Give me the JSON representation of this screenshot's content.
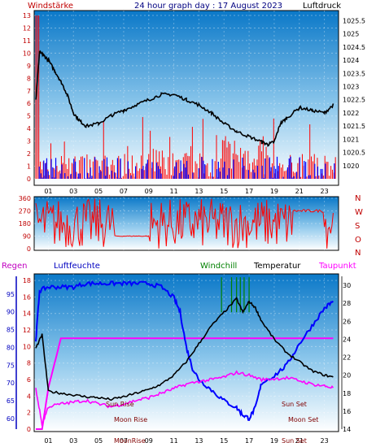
{
  "header": {
    "left_label": "Windstärke",
    "title": "24 hour graph day : 17 August 2023",
    "right_label": "Luftdruck"
  },
  "compass": [
    "N",
    "W",
    "S",
    "O",
    "N"
  ],
  "legend": {
    "regen": "Regen",
    "luftfeuchte": "Luftfeuchte",
    "windchill": "Windchill",
    "temperatur": "Temperatur",
    "taupunkt": "Taupunkt"
  },
  "annotations": {
    "sun_rise": "Sun Rise",
    "moon_rise": "Moon Rise",
    "sun_set": "Sun Set",
    "moon_set": "Moon Set",
    "axis_moon_rise": "MoonRise",
    "axis_sun_set": "Sun Set"
  },
  "colors": {
    "wind": "#ff0000",
    "gust": "#0000ff",
    "pressure": "#000000",
    "humidity": "#0000ff",
    "temperature": "#000000",
    "dewpoint": "#ff00ff",
    "windchill": "#008000",
    "rain": "#ff00ff"
  },
  "chart_data": [
    {
      "type": "line",
      "title": "24 hour graph day : 17 August 2023",
      "hours": [
        "01",
        "03",
        "05",
        "07",
        "09",
        "11",
        "13",
        "15",
        "17",
        "19",
        "21",
        "23"
      ],
      "ylabel_left": "Windstärke",
      "ylabel_right": "Luftdruck",
      "ylim_left": [
        0,
        13
      ],
      "ylim_right": [
        1019.5,
        1025.7
      ],
      "yticks_left": [
        "0",
        "1",
        "2",
        "3",
        "4",
        "5",
        "6",
        "7",
        "8",
        "9",
        "10",
        "11",
        "12",
        "13"
      ],
      "yticks_right": [
        "1020",
        "1020.5",
        "1021",
        "1021.5",
        "1022",
        "1022.5",
        "1023",
        "1023.5",
        "1024",
        "1024.5",
        "1025",
        "1025.5"
      ],
      "series": [
        {
          "name": "Luftdruck",
          "x": [
            0,
            0.3,
            0.6,
            1,
            1.5,
            2,
            2.5,
            3,
            3.5,
            4,
            5,
            6,
            7,
            8,
            9,
            10,
            11,
            12,
            13,
            14,
            15,
            16,
            17,
            18,
            18.5,
            19,
            19.5,
            20,
            21,
            22,
            23,
            23.7
          ],
          "y": [
            1022.5,
            1024.3,
            1024.2,
            1024,
            1023.6,
            1023.2,
            1022.7,
            1022,
            1021.7,
            1021.5,
            1021.6,
            1021.9,
            1022.1,
            1022.3,
            1022.5,
            1022.7,
            1022.7,
            1022.5,
            1022.3,
            1022.0,
            1021.6,
            1021.3,
            1021.1,
            1020.9,
            1020.8,
            1020.9,
            1021.6,
            1021.8,
            1022.2,
            1022.1,
            1022.0,
            1022.3
          ]
        }
      ]
    },
    {
      "type": "scatter",
      "title": "",
      "yticks": [
        "0",
        "90",
        "180",
        "270",
        "360"
      ],
      "ylim": [
        0,
        360
      ]
    },
    {
      "type": "line",
      "title": "",
      "yticks_left": [
        "60",
        "65",
        "70",
        "75",
        "80",
        "85",
        "90",
        "95"
      ],
      "yticks_left2": [
        "0",
        "2",
        "4",
        "6",
        "8",
        "10",
        "12",
        "14",
        "16",
        "18"
      ],
      "yticks_right": [
        "14",
        "16",
        "18",
        "20",
        "22",
        "24",
        "26",
        "28",
        "30"
      ],
      "ylim_humidity": [
        57,
        100
      ],
      "ylim_temp": [
        14,
        31
      ],
      "series": [
        {
          "name": "Luftfeuchte",
          "x": [
            0,
            0.3,
            1,
            2,
            3,
            4,
            5,
            6,
            7,
            8,
            9,
            10,
            11,
            11.5,
            12,
            12.5,
            13,
            14,
            15,
            16,
            16.5,
            17,
            17.5,
            18,
            19,
            20,
            21,
            22,
            23,
            23.7
          ],
          "y": [
            82,
            96,
            97,
            97,
            97,
            98,
            98,
            98,
            98,
            98,
            98,
            97,
            94,
            90,
            80,
            74,
            71,
            68,
            65,
            63,
            61,
            60,
            63,
            70,
            72,
            75,
            81,
            86,
            91,
            93
          ]
        },
        {
          "name": "Temperatur",
          "x": [
            0,
            0.5,
            1,
            2,
            3,
            4,
            5,
            6,
            7,
            8,
            9,
            10,
            11,
            12,
            13,
            14,
            15,
            16,
            16.5,
            17,
            17.5,
            18,
            19,
            20,
            21,
            22,
            23,
            23.7
          ],
          "y": [
            23,
            24.5,
            18.2,
            18.0,
            17.8,
            17.6,
            17.5,
            17.3,
            17.6,
            18.0,
            18.4,
            19.0,
            20.0,
            21.5,
            23.5,
            25.5,
            27.0,
            28.5,
            27.0,
            28.2,
            27.5,
            26.0,
            24.0,
            22.5,
            21.5,
            20.5,
            20.0,
            19.8
          ]
        },
        {
          "name": "Taupunkt",
          "x": [
            0,
            0.5,
            1,
            2,
            3,
            4,
            5,
            6,
            7,
            8,
            9,
            10,
            11,
            12,
            13,
            14,
            15,
            16,
            17,
            18,
            19,
            20,
            21,
            22,
            23,
            23.7
          ],
          "y": [
            18.5,
            14.5,
            16.5,
            16.8,
            17.0,
            17.2,
            16.8,
            16.5,
            16.8,
            17.2,
            17.5,
            18,
            18.5,
            19,
            19.3,
            19.5,
            19.8,
            20.3,
            20.0,
            19.5,
            19.6,
            19.7,
            19.4,
            19.0,
            18.8,
            18.6
          ]
        },
        {
          "name": "Regen",
          "x": [
            0,
            0.5,
            1,
            2,
            3,
            4,
            5,
            6,
            7,
            8,
            9,
            10,
            11,
            12,
            13,
            14,
            15,
            16,
            17,
            18,
            19,
            20,
            21,
            22,
            23,
            23.7
          ],
          "y": [
            0,
            0,
            5,
            11,
            11,
            11,
            11,
            11,
            11,
            11,
            11,
            11,
            11,
            11,
            11,
            11,
            11,
            11,
            11,
            11,
            11,
            11,
            11,
            11,
            11,
            11
          ]
        }
      ]
    }
  ]
}
